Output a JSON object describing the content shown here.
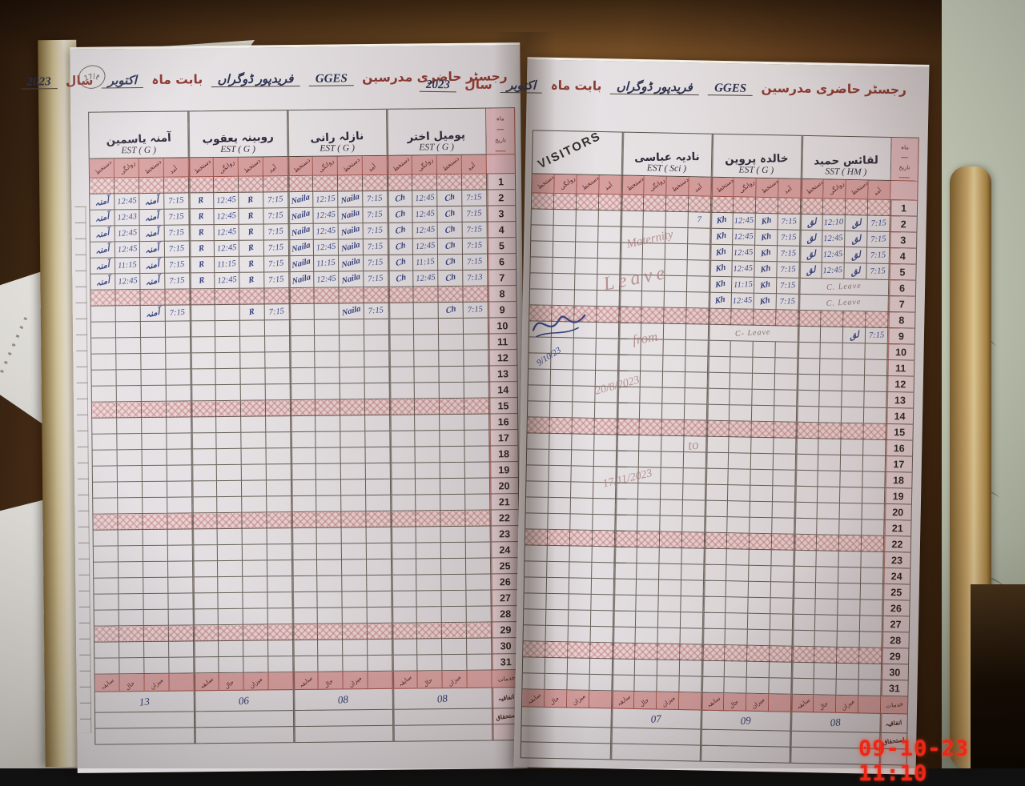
{
  "photo": {
    "camera_timestamp": "09-10-23 11:10",
    "colors": {
      "wood": "#6e4a24",
      "paper": "#e6e1e3",
      "pink_header": "#d7a0a0",
      "grid_line": "#4e463d",
      "ink_blue": "#3a4a8e",
      "title_red": "#8e3a32",
      "timestamp_red": "#ee2617",
      "green_paper": "#c9cfbc",
      "tan_edge": "#c7a468"
    }
  },
  "register": {
    "stamp_text": "م/17",
    "title": {
      "label": "رجسٹر حاضری مدرسین",
      "school": "GGES",
      "place": "فریدپور ڈوگراں",
      "middle": "بابت ماہ",
      "month": "اکتوبر",
      "year_label": "سال",
      "year": "2023"
    },
    "column_subheaders": [
      "دستخط",
      "روانگی",
      "دستخط",
      "آمد"
    ],
    "date_column_headers": [
      "ماہ",
      "تاریخ"
    ],
    "holiday_rows": [
      1,
      8,
      15,
      22,
      29
    ],
    "day_rows": 31,
    "summary": {
      "labels": [
        "سابقہ",
        "حال",
        "میزان",
        ""
      ],
      "side_labels": [
        "خدمات",
        "اتفاقیہ",
        "استحقاق"
      ]
    },
    "pages": [
      {
        "side": "left",
        "columns": [
          {
            "type": "teacher",
            "name": "آمنہ یاسمین",
            "designation": "EST ( G )",
            "sig": "آمنہ",
            "total": "13",
            "att": {
              "2": [
                "12:45",
                "7:15"
              ],
              "3": [
                "12:43",
                "7:15"
              ],
              "4": [
                "12:45",
                "7:15"
              ],
              "5": [
                "12:45",
                "7:15"
              ],
              "6": [
                "11:15",
                "7:15"
              ],
              "7": [
                "12:45",
                "7:15"
              ],
              "9": [
                "",
                "7:15"
              ]
            }
          },
          {
            "type": "teacher",
            "name": "روبینہ یعقوب",
            "designation": "EST ( G )",
            "sig": "R",
            "total": "06",
            "att": {
              "2": [
                "12:45",
                "7:15"
              ],
              "3": [
                "12:45",
                "7:15"
              ],
              "4": [
                "12:45",
                "7:15"
              ],
              "5": [
                "12:45",
                "7:15"
              ],
              "6": [
                "11:15",
                "7:15"
              ],
              "7": [
                "12:45",
                "7:15"
              ],
              "9": [
                "",
                "7:15"
              ]
            }
          },
          {
            "type": "teacher",
            "name": "نازلہ رانی",
            "designation": "EST ( G )",
            "sig": "Naila",
            "total": "08",
            "att": {
              "2": [
                "12:15",
                "7:15"
              ],
              "3": [
                "12:45",
                "7:15"
              ],
              "4": [
                "12:45",
                "7:15"
              ],
              "5": [
                "12:45",
                "7:15"
              ],
              "6": [
                "11:15",
                "7:15"
              ],
              "7": [
                "12:45",
                "7:15"
              ],
              "9": [
                "",
                "7:15"
              ]
            }
          },
          {
            "type": "teacher",
            "name": "پومیل اختر",
            "designation": "EST ( G )",
            "sig": "Ch",
            "total": "08",
            "att": {
              "2": [
                "12:45",
                "7:15"
              ],
              "3": [
                "12:45",
                "7:15"
              ],
              "4": [
                "12:45",
                "7:15"
              ],
              "5": [
                "12:45",
                "7:15"
              ],
              "6": [
                "11:15",
                "7:15"
              ],
              "7": [
                "12:45",
                "7:13"
              ],
              "9": [
                "",
                "7:15"
              ]
            }
          }
        ]
      },
      {
        "side": "right",
        "columns": [
          {
            "type": "visitors",
            "label": "VISITORS",
            "sign_date": "9/10/23"
          },
          {
            "type": "teacher",
            "name": "نادیہ عباسی",
            "designation": "EST ( Sci )",
            "sig": "",
            "total": "07",
            "entries": {
              "2": "7"
            },
            "leave_note": [
              "Maternity",
              "Leave",
              "from",
              "20/8/2023",
              "to",
              "17/11/2023"
            ]
          },
          {
            "type": "teacher",
            "name": "خالدہ پروین",
            "designation": "EST ( G )",
            "sig": "Kh",
            "total": "09",
            "att": {
              "2": [
                "12:45",
                "7:15"
              ],
              "3": [
                "12:45",
                "7:15"
              ],
              "4": [
                "12:45",
                "7:15"
              ],
              "5": [
                "12:45",
                "7:15"
              ],
              "6": [
                "11:15",
                "7:15"
              ],
              "7": [
                "12:45",
                "7:15"
              ]
            },
            "notes": {
              "9": "C- Leave"
            }
          },
          {
            "type": "teacher",
            "name": "لقائس حمید",
            "designation": "SST ( HM )",
            "sig": "لق",
            "total": "08",
            "att": {
              "2": [
                "12:10",
                "7:15"
              ],
              "3": [
                "12:45",
                "7:15"
              ],
              "4": [
                "12:45",
                "7:15"
              ],
              "5": [
                "12:45",
                "7:15"
              ],
              "9": [
                "",
                "7:15"
              ]
            },
            "notes": {
              "6": "C. Leave",
              "7": "C. Leave"
            }
          }
        ]
      }
    ]
  }
}
